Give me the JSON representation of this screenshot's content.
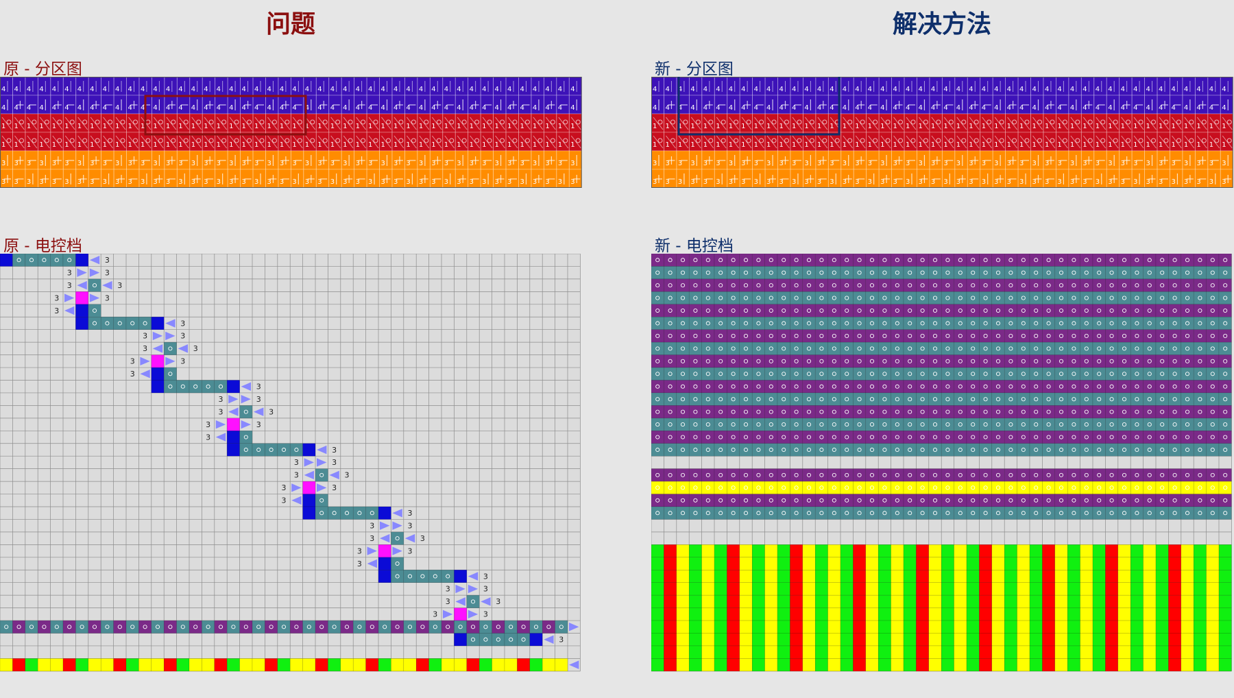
{
  "headings": {
    "left": "问题",
    "right": "解决方法"
  },
  "labels": {
    "orig_zone": "原 - 分区图",
    "orig_control": "原 - 电控档",
    "new_zone": "新 - 分区图",
    "new_control": "新 - 电控档"
  },
  "zone_grid": {
    "row_labels": [
      "4",
      "4",
      "1",
      "1",
      "3",
      "3"
    ],
    "row_colors": [
      "#3d12b8",
      "#3d12b8",
      "#c80e1e",
      "#c80e1e",
      "#ff8c00",
      "#ff8c00"
    ]
  },
  "control_grid": {
    "step_label": "3",
    "colors": {
      "grid_bg": "#dcdcdc",
      "grid_line": "#8c8c8c",
      "blue": "#0b0bd6",
      "teal": "#4c8c94",
      "magenta": "#ff10ff",
      "arrow": "#8888ff",
      "purple": "#7b2a88",
      "red": "#ff0000",
      "green": "#10f010",
      "yellow": "#ffff00"
    }
  }
}
